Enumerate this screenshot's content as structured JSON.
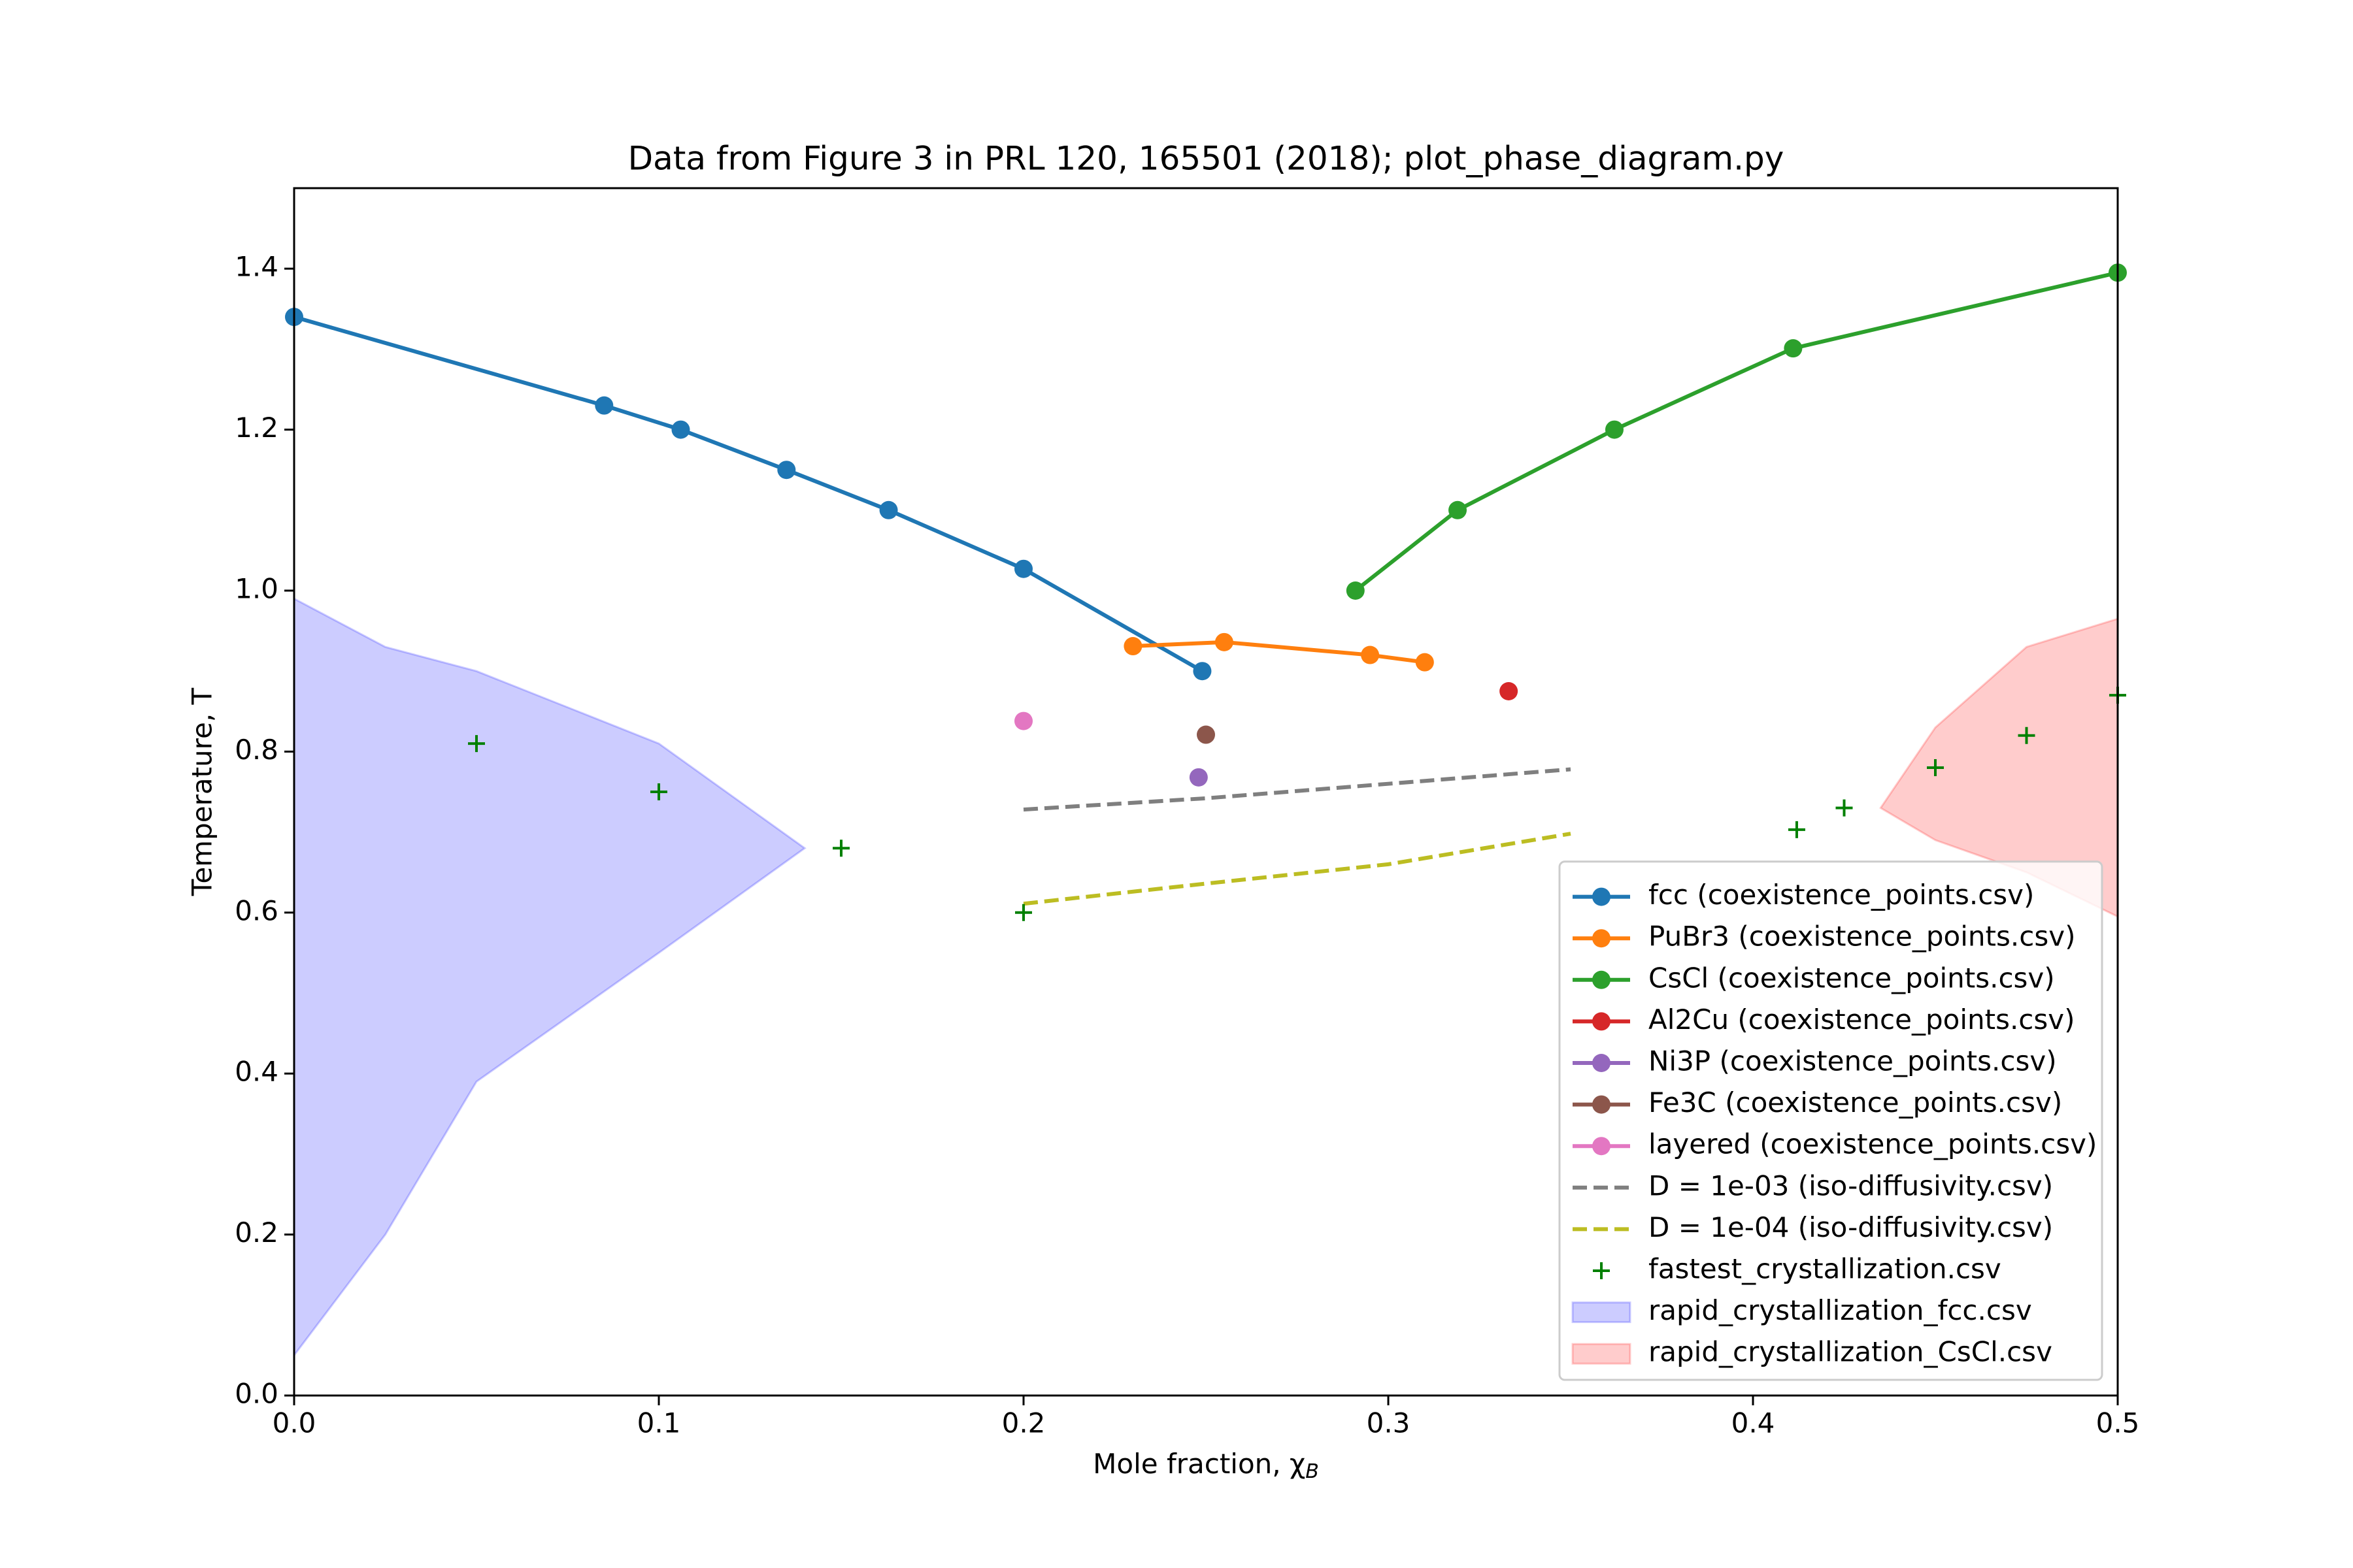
{
  "chart_data": {
    "type": "phase-diagram",
    "title": "Data from Figure 3 in PRL 120, 165501 (2018); plot_phase_diagram.py",
    "xlabel": "Mole fraction, χ",
    "xlabel_subscript": "B",
    "ylabel": "Temperature, T",
    "xlim": [
      0,
      0.5
    ],
    "ylim": [
      0,
      1.5
    ],
    "xticks": [
      {
        "value": 0,
        "label": "0.0"
      },
      0.1,
      0.2,
      0.3,
      0.4,
      0.5
    ],
    "yticks": [
      {
        "value": 0,
        "label": "0.0"
      },
      0.2,
      0.4,
      0.6,
      0.8,
      {
        "value": 1,
        "label": "1.0"
      },
      1.2,
      1.4
    ],
    "legend": "lower right",
    "series": [
      {
        "name": "fcc (coexistence_points.csv)",
        "kind": "line",
        "marker": "o",
        "dash": false,
        "color": "#1f77b4",
        "x": [
          0,
          0.085,
          0.106,
          0.135,
          0.163,
          0.2,
          0.249
        ],
        "y": [
          1.34,
          1.23,
          1.2,
          1.15,
          1.1,
          1.027,
          0.9
        ]
      },
      {
        "name": "PuBr3 (coexistence_points.csv)",
        "kind": "line",
        "marker": "o",
        "dash": false,
        "color": "#ff7f0e",
        "x": [
          0.23,
          0.255,
          0.295,
          0.31
        ],
        "y": [
          0.931,
          0.936,
          0.92,
          0.911
        ]
      },
      {
        "name": "CsCl (coexistence_points.csv)",
        "kind": "line",
        "marker": "o",
        "dash": false,
        "color": "#2ca02c",
        "x": [
          0.291,
          0.319,
          0.362,
          0.411,
          0.5
        ],
        "y": [
          1.0,
          1.1,
          1.2,
          1.301,
          1.395
        ]
      },
      {
        "name": "Al2Cu (coexistence_points.csv)",
        "kind": "line",
        "marker": "o",
        "dash": false,
        "color": "#d62728",
        "x": [
          0.333
        ],
        "y": [
          0.875
        ]
      },
      {
        "name": "Ni3P (coexistence_points.csv)",
        "kind": "line",
        "marker": "o",
        "dash": false,
        "color": "#9467bd",
        "x": [
          0.248
        ],
        "y": [
          0.768
        ]
      },
      {
        "name": "Fe3C (coexistence_points.csv)",
        "kind": "line",
        "marker": "o",
        "dash": false,
        "color": "#8c564b",
        "x": [
          0.25
        ],
        "y": [
          0.821
        ]
      },
      {
        "name": "layered (coexistence_points.csv)",
        "kind": "line",
        "marker": "o",
        "dash": false,
        "color": "#e377c2",
        "x": [
          0.2
        ],
        "y": [
          0.838
        ]
      },
      {
        "name": "D = 1e-03 (iso-diffusivity.csv)",
        "kind": "line",
        "marker": "none",
        "dash": true,
        "color": "#7f7f7f",
        "x": [
          0.2,
          0.25,
          0.3,
          0.35
        ],
        "y": [
          0.728,
          0.742,
          0.76,
          0.778
        ]
      },
      {
        "name": "D = 1e-04 (iso-diffusivity.csv)",
        "kind": "line",
        "marker": "none",
        "dash": true,
        "color": "#bcbd22",
        "x": [
          0.2,
          0.25,
          0.3,
          0.35
        ],
        "y": [
          0.611,
          0.636,
          0.66,
          0.698
        ]
      },
      {
        "name": "fastest_crystallization.csv",
        "kind": "scatter",
        "marker": "+",
        "color": "#008000",
        "x": [
          0.05,
          0.1,
          0.15,
          0.2,
          0.412,
          0.425,
          0.45,
          0.475,
          0.5
        ],
        "y": [
          0.81,
          0.75,
          0.68,
          0.6,
          0.703,
          0.73,
          0.78,
          0.82,
          0.87
        ]
      },
      {
        "name": "rapid_crystallization_fcc.csv",
        "kind": "fill",
        "color": "#0000ff",
        "alpha": 0.2,
        "x": [
          0,
          0.025,
          0.05,
          0.1,
          0.14
        ],
        "y_lower": [
          0.05,
          0.2,
          0.39,
          0.55,
          0.68
        ],
        "y_upper": [
          0.99,
          0.93,
          0.9,
          0.81,
          0.68
        ]
      },
      {
        "name": "rapid_crystallization_CsCl.csv",
        "kind": "fill",
        "color": "#ff0000",
        "alpha": 0.2,
        "x": [
          0.435,
          0.45,
          0.475,
          0.5
        ],
        "y_lower": [
          0.73,
          0.69,
          0.65,
          0.595
        ],
        "y_upper": [
          0.73,
          0.83,
          0.93,
          0.965
        ]
      }
    ]
  }
}
